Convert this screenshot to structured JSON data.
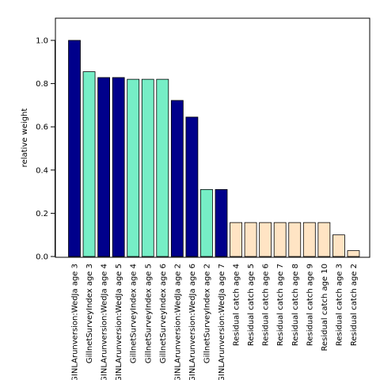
{
  "chart_data": {
    "type": "bar",
    "title": "",
    "xlabel": "",
    "ylabel": "relative weight",
    "ylim": [
      0,
      1.1
    ],
    "yticks": [
      "0.0",
      "0.2",
      "0.4",
      "0.6",
      "0.8",
      "1.0"
    ],
    "grid": false,
    "colors": {
      "GINLArunversion:WedJa": "#00008B",
      "GillnetSurveyIndex": "#76EEC6",
      "Residual catch": "#FFE4C4"
    },
    "categories": [
      "GINLArunversion:WedJa age 3",
      "GillnetSurveyIndex age 3",
      "GINLArunversion:WedJa age 4",
      "GINLArunversion:WedJa age 5",
      "GillnetSurveyIndex age 4",
      "GillnetSurveyIndex age 5",
      "GillnetSurveyIndex age 6",
      "GINLArunversion:WedJa age 2",
      "GINLArunversion:WedJa age 6",
      "GillnetSurveyIndex age 2",
      "GINLArunversion:WedJa age 7",
      "Residual catch age 4",
      "Residual catch age 5",
      "Residual catch age 6",
      "Residual catch age 7",
      "Residual catch age 8",
      "Residual catch age 9",
      "Residual catch age 10",
      "Residual catch age 3",
      "Residual catch age 2"
    ],
    "values": [
      1.0,
      0.855,
      0.828,
      0.828,
      0.82,
      0.82,
      0.82,
      0.722,
      0.645,
      0.31,
      0.31,
      0.157,
      0.157,
      0.157,
      0.157,
      0.157,
      0.157,
      0.157,
      0.1,
      0.027
    ],
    "bar_groups": [
      "GINLArunversion:WedJa",
      "GillnetSurveyIndex",
      "GINLArunversion:WedJa",
      "GINLArunversion:WedJa",
      "GillnetSurveyIndex",
      "GillnetSurveyIndex",
      "GillnetSurveyIndex",
      "GINLArunversion:WedJa",
      "GINLArunversion:WedJa",
      "GillnetSurveyIndex",
      "GINLArunversion:WedJa",
      "Residual catch",
      "Residual catch",
      "Residual catch",
      "Residual catch",
      "Residual catch",
      "Residual catch",
      "Residual catch",
      "Residual catch",
      "Residual catch"
    ]
  }
}
